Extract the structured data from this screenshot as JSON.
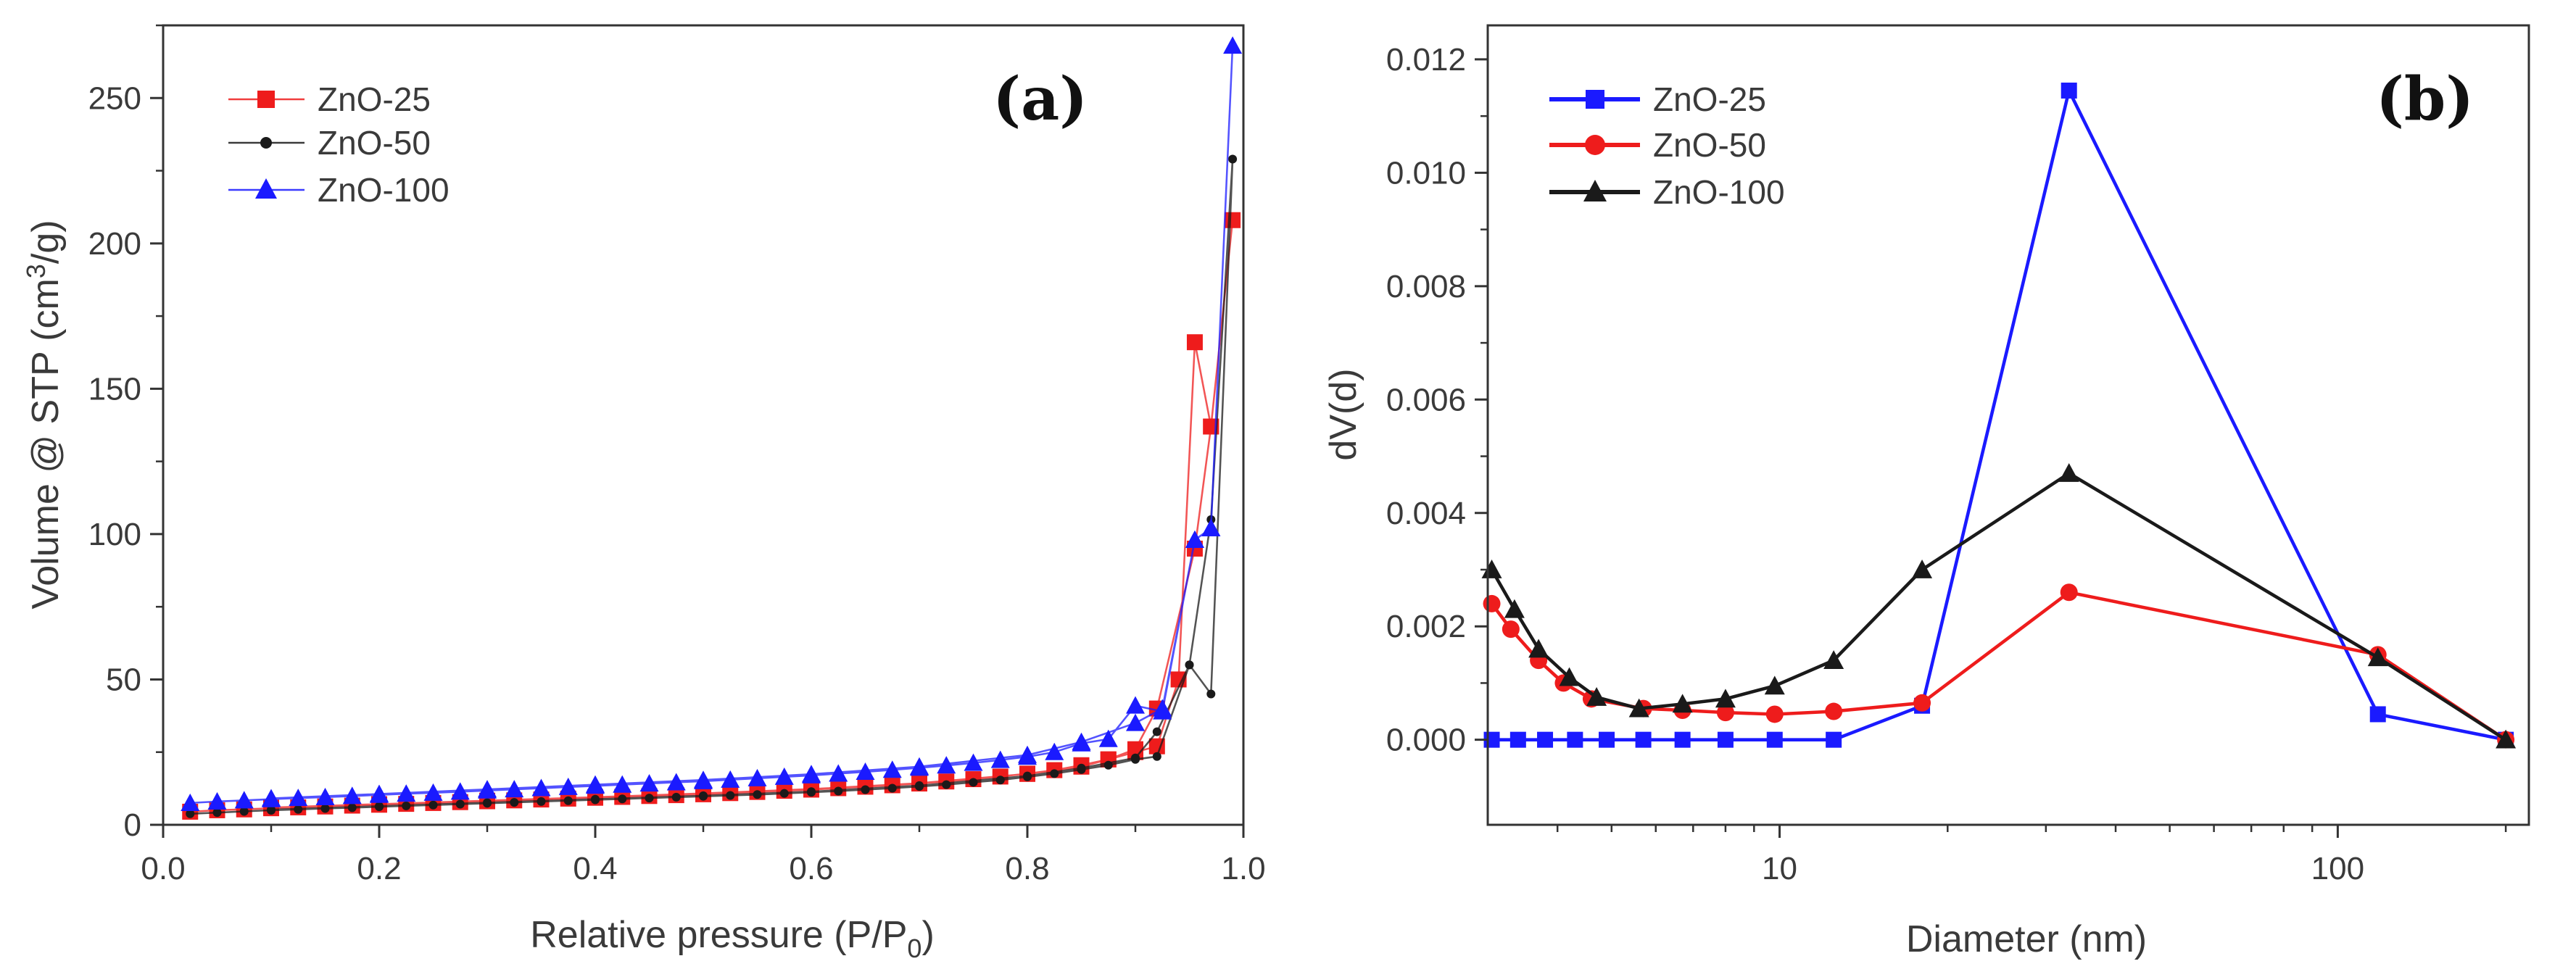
{
  "colors": {
    "red": "#ee1c1c",
    "black": "#1a1a1a",
    "blue": "#1a1aff",
    "axis": "#333333"
  },
  "chart_data": [
    {
      "id": "a",
      "type": "line",
      "panel_label": "(a)",
      "xlabel_main": "Relative pressure (P/P",
      "xlabel_sub": "0",
      "xlabel_end": ")",
      "ylabel_main": "Volume @ STP (cm",
      "ylabel_sup": "3",
      "ylabel_end": "/g)",
      "xlim": [
        0.0,
        1.0
      ],
      "ylim": [
        0,
        275
      ],
      "xticks": [
        0.0,
        0.2,
        0.4,
        0.6,
        0.8,
        1.0
      ],
      "xtick_labels": [
        "0.0",
        "0.2",
        "0.4",
        "0.6",
        "0.8",
        "1.0"
      ],
      "yticks": [
        0,
        50,
        100,
        150,
        200,
        250
      ],
      "ytick_labels": [
        "0",
        "50",
        "100",
        "150",
        "200",
        "250"
      ],
      "legend_position": "top-left",
      "series": [
        {
          "name": "ZnO-25",
          "color": "#ee1c1c",
          "marker": "square",
          "linewidth": 1.5,
          "opacity": 0.75,
          "points": [
            [
              0.025,
              4.5
            ],
            [
              0.05,
              5
            ],
            [
              0.075,
              5.3
            ],
            [
              0.1,
              5.7
            ],
            [
              0.125,
              6
            ],
            [
              0.15,
              6.3
            ],
            [
              0.175,
              6.6
            ],
            [
              0.2,
              6.9
            ],
            [
              0.225,
              7.2
            ],
            [
              0.25,
              7.5
            ],
            [
              0.275,
              7.8
            ],
            [
              0.3,
              8.1
            ],
            [
              0.325,
              8.4
            ],
            [
              0.35,
              8.7
            ],
            [
              0.375,
              9
            ],
            [
              0.4,
              9.3
            ],
            [
              0.425,
              9.6
            ],
            [
              0.45,
              9.9
            ],
            [
              0.475,
              10.2
            ],
            [
              0.5,
              10.5
            ],
            [
              0.525,
              10.9
            ],
            [
              0.55,
              11.3
            ],
            [
              0.575,
              11.7
            ],
            [
              0.6,
              12.1
            ],
            [
              0.625,
              12.6
            ],
            [
              0.65,
              13.1
            ],
            [
              0.675,
              13.6
            ],
            [
              0.7,
              14.2
            ],
            [
              0.725,
              14.9
            ],
            [
              0.75,
              15.7
            ],
            [
              0.775,
              16.6
            ],
            [
              0.8,
              17.6
            ],
            [
              0.825,
              18.8
            ],
            [
              0.85,
              20.5
            ],
            [
              0.875,
              22.5
            ],
            [
              0.9,
              25
            ],
            [
              0.92,
              27
            ],
            [
              0.94,
              50
            ],
            [
              0.955,
              166
            ],
            [
              0.97,
              137
            ],
            [
              0.99,
              208
            ],
            [
              0.97,
              137
            ],
            [
              0.955,
              95
            ],
            [
              0.92,
              40
            ],
            [
              0.9,
              26
            ],
            [
              0.875,
              22.5
            ],
            [
              0.85,
              20
            ],
            [
              0.8,
              17.5
            ],
            [
              0.7,
              14.3
            ],
            [
              0.6,
              12.3
            ],
            [
              0.5,
              10.8
            ],
            [
              0.4,
              9.5
            ],
            [
              0.3,
              8.3
            ],
            [
              0.2,
              7.1
            ],
            [
              0.1,
              5.9
            ]
          ]
        },
        {
          "name": "ZnO-50",
          "color": "#1a1a1a",
          "marker": "dot",
          "linewidth": 1.5,
          "opacity": 0.75,
          "points": [
            [
              0.025,
              3.8
            ],
            [
              0.05,
              4.2
            ],
            [
              0.075,
              4.6
            ],
            [
              0.1,
              5
            ],
            [
              0.125,
              5.3
            ],
            [
              0.15,
              5.6
            ],
            [
              0.175,
              5.9
            ],
            [
              0.2,
              6.2
            ],
            [
              0.225,
              6.5
            ],
            [
              0.25,
              6.8
            ],
            [
              0.275,
              7.1
            ],
            [
              0.3,
              7.4
            ],
            [
              0.325,
              7.7
            ],
            [
              0.35,
              8
            ],
            [
              0.375,
              8.3
            ],
            [
              0.4,
              8.6
            ],
            [
              0.425,
              8.9
            ],
            [
              0.45,
              9.2
            ],
            [
              0.475,
              9.5
            ],
            [
              0.5,
              9.8
            ],
            [
              0.525,
              10.1
            ],
            [
              0.55,
              10.4
            ],
            [
              0.575,
              10.8
            ],
            [
              0.6,
              11.2
            ],
            [
              0.625,
              11.6
            ],
            [
              0.65,
              12.1
            ],
            [
              0.675,
              12.6
            ],
            [
              0.7,
              13.2
            ],
            [
              0.725,
              13.8
            ],
            [
              0.75,
              14.6
            ],
            [
              0.775,
              15.4
            ],
            [
              0.8,
              16.5
            ],
            [
              0.825,
              17.6
            ],
            [
              0.85,
              19
            ],
            [
              0.875,
              20.5
            ],
            [
              0.9,
              22.5
            ],
            [
              0.92,
              23.5
            ],
            [
              0.95,
              55
            ],
            [
              0.97,
              45
            ],
            [
              0.99,
              229
            ],
            [
              0.97,
              105
            ],
            [
              0.95,
              55
            ],
            [
              0.92,
              32
            ],
            [
              0.9,
              23
            ],
            [
              0.85,
              19.5
            ],
            [
              0.8,
              16.8
            ],
            [
              0.7,
              13.5
            ],
            [
              0.6,
              11.4
            ],
            [
              0.5,
              10
            ],
            [
              0.4,
              8.8
            ],
            [
              0.3,
              7.6
            ],
            [
              0.2,
              6.4
            ],
            [
              0.1,
              5.2
            ]
          ]
        },
        {
          "name": "ZnO-100",
          "color": "#1a1aff",
          "marker": "triangle",
          "linewidth": 1.5,
          "opacity": 0.75,
          "points": [
            [
              0.025,
              7.5
            ],
            [
              0.05,
              8
            ],
            [
              0.075,
              8.4
            ],
            [
              0.1,
              8.8
            ],
            [
              0.125,
              9.2
            ],
            [
              0.15,
              9.5
            ],
            [
              0.175,
              9.9
            ],
            [
              0.2,
              10.3
            ],
            [
              0.225,
              10.7
            ],
            [
              0.25,
              11
            ],
            [
              0.275,
              11.4
            ],
            [
              0.3,
              11.8
            ],
            [
              0.325,
              12.2
            ],
            [
              0.35,
              12.6
            ],
            [
              0.375,
              13
            ],
            [
              0.4,
              13.4
            ],
            [
              0.425,
              13.8
            ],
            [
              0.45,
              14.2
            ],
            [
              0.475,
              14.6
            ],
            [
              0.5,
              15
            ],
            [
              0.525,
              15.5
            ],
            [
              0.55,
              16
            ],
            [
              0.575,
              16.5
            ],
            [
              0.6,
              17
            ],
            [
              0.625,
              17.6
            ],
            [
              0.65,
              18.2
            ],
            [
              0.675,
              18.9
            ],
            [
              0.7,
              19.6
            ],
            [
              0.725,
              20.4
            ],
            [
              0.75,
              21.3
            ],
            [
              0.775,
              22.3
            ],
            [
              0.8,
              23.4
            ],
            [
              0.825,
              25
            ],
            [
              0.85,
              28
            ],
            [
              0.875,
              29.5
            ],
            [
              0.9,
              41
            ],
            [
              0.925,
              39
            ],
            [
              0.955,
              98
            ],
            [
              0.97,
              102
            ],
            [
              0.99,
              268
            ],
            [
              0.97,
              102
            ],
            [
              0.955,
              98
            ],
            [
              0.925,
              40
            ],
            [
              0.9,
              35
            ],
            [
              0.85,
              28.5
            ],
            [
              0.8,
              24
            ],
            [
              0.7,
              20
            ],
            [
              0.6,
              17.4
            ],
            [
              0.5,
              15.4
            ],
            [
              0.4,
              13.8
            ],
            [
              0.3,
              12.2
            ],
            [
              0.2,
              10.6
            ],
            [
              0.1,
              9.1
            ]
          ]
        }
      ]
    },
    {
      "id": "b",
      "type": "line",
      "x_scale": "log",
      "panel_label": "(b)",
      "xlabel": "Diameter (nm)",
      "ylabel": "dV(d)",
      "xlim": [
        3.0,
        220
      ],
      "ylim": [
        -0.0015,
        0.0126
      ],
      "xticks": [
        10,
        100
      ],
      "xtick_labels": [
        "10",
        "100"
      ],
      "yticks": [
        0.0,
        0.002,
        0.004,
        0.006,
        0.008,
        0.01,
        0.012
      ],
      "ytick_labels": [
        "0.000",
        "0.002",
        "0.004",
        "0.006",
        "0.008",
        "0.010",
        "0.012"
      ],
      "legend_position": "top-left",
      "series": [
        {
          "name": "ZnO-25",
          "color": "#1a1aff",
          "marker": "square",
          "linewidth": 3.5,
          "opacity": 1,
          "points": [
            [
              3.05,
              0
            ],
            [
              3.4,
              0
            ],
            [
              3.8,
              0
            ],
            [
              4.3,
              0
            ],
            [
              4.9,
              0
            ],
            [
              5.7,
              0
            ],
            [
              6.7,
              0
            ],
            [
              8.0,
              0
            ],
            [
              9.8,
              0
            ],
            [
              12.5,
              0
            ],
            [
              18,
              0.0006
            ],
            [
              33,
              0.01145
            ],
            [
              118,
              0.00045
            ],
            [
              200,
              0
            ]
          ]
        },
        {
          "name": "ZnO-50",
          "color": "#ee1c1c",
          "marker": "circle",
          "linewidth": 3.5,
          "opacity": 1,
          "points": [
            [
              3.05,
              0.0024
            ],
            [
              3.3,
              0.00195
            ],
            [
              3.7,
              0.0014
            ],
            [
              4.1,
              0.001
            ],
            [
              4.6,
              0.00072
            ],
            [
              5.7,
              0.00055
            ],
            [
              6.7,
              0.00052
            ],
            [
              8.0,
              0.00048
            ],
            [
              9.8,
              0.00045
            ],
            [
              12.5,
              0.0005
            ],
            [
              18,
              0.00065
            ],
            [
              33,
              0.0026
            ],
            [
              118,
              0.0015
            ],
            [
              200,
              0
            ]
          ]
        },
        {
          "name": "ZnO-100",
          "color": "#1a1a1a",
          "marker": "triangle",
          "linewidth": 3.5,
          "opacity": 1,
          "points": [
            [
              3.05,
              0.003
            ],
            [
              3.35,
              0.0023
            ],
            [
              3.7,
              0.0016
            ],
            [
              4.2,
              0.0011
            ],
            [
              4.7,
              0.00075
            ],
            [
              5.6,
              0.00055
            ],
            [
              6.7,
              0.00063
            ],
            [
              8.0,
              0.00072
            ],
            [
              9.8,
              0.00095
            ],
            [
              12.5,
              0.0014
            ],
            [
              18,
              0.003
            ],
            [
              33,
              0.0047
            ],
            [
              118,
              0.00145
            ],
            [
              200,
              0
            ]
          ]
        }
      ]
    }
  ]
}
